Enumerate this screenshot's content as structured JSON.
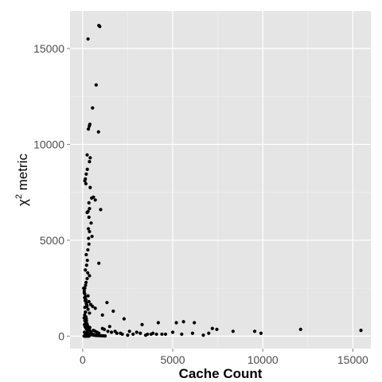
{
  "chart_data": {
    "type": "scatter",
    "title": "",
    "xlabel": "Cache Count",
    "ylabel_symbol": "χ",
    "ylabel_sup": "2",
    "ylabel_rest": " metric",
    "xlim": [
      -700,
      16000
    ],
    "ylim": [
      -650,
      16950
    ],
    "xticks": [
      0,
      5000,
      10000,
      15000
    ],
    "yticks": [
      0,
      5000,
      10000,
      15000
    ],
    "xtick_labels": [
      "0",
      "5000",
      "10000",
      "15000"
    ],
    "ytick_labels": [
      "0",
      "5000",
      "10000",
      "15000"
    ],
    "grid": true,
    "panel_color": "#e5e5e5",
    "grid_color": "#ffffff",
    "point_color": "#000000",
    "x": [
      900,
      950,
      300,
      750,
      550,
      400,
      370,
      880,
      320,
      420,
      380,
      250,
      260,
      200,
      150,
      120,
      180,
      420,
      500,
      700,
      600,
      350,
      380,
      300,
      250,
      1000,
      350,
      470,
      320,
      380,
      520,
      330,
      350,
      290,
      200,
      260,
      220,
      150,
      900,
      280,
      380,
      250,
      190,
      160,
      120,
      90,
      110,
      140,
      200,
      240,
      300,
      160,
      110,
      80,
      120,
      160,
      300,
      350,
      450,
      550,
      700,
      380,
      200,
      1100,
      1350,
      1700,
      2300,
      3300,
      4200,
      5200,
      5600,
      6200,
      7200,
      7450,
      8350,
      9550,
      9900,
      12100,
      15450,
      1500,
      1800,
      2100,
      2600,
      3000,
      3600,
      3900,
      4400,
      5000,
      5500,
      6100,
      6700,
      7000,
      400,
      600,
      700,
      800,
      900,
      1100,
      1200,
      1400,
      1600,
      1900,
      2200,
      2500,
      2800,
      3200,
      3500,
      3800,
      4100,
      4600,
      120,
      150,
      180,
      210,
      240,
      270,
      300,
      330,
      360,
      390,
      420,
      450,
      480,
      510,
      540,
      570,
      600,
      630,
      660,
      690,
      720,
      780,
      850,
      950,
      1050,
      1150,
      1250,
      100,
      130,
      170,
      200,
      230,
      260,
      290,
      320,
      350,
      380,
      410,
      440,
      470,
      500,
      530,
      560,
      590,
      620,
      80,
      110,
      140,
      170,
      200,
      230,
      260,
      290,
      320,
      350,
      60,
      90,
      120,
      150,
      180,
      210,
      240,
      100,
      150,
      200,
      250,
      300,
      350,
      400
    ],
    "y": [
      16200,
      16150,
      15500,
      13100,
      11900,
      11050,
      10950,
      10650,
      10800,
      9300,
      9100,
      9450,
      8700,
      8450,
      8200,
      8100,
      7950,
      7750,
      7200,
      7100,
      7250,
      6950,
      6650,
      6500,
      6450,
      6600,
      6200,
      5900,
      5600,
      5450,
      5200,
      5100,
      4800,
      4500,
      4250,
      3950,
      3700,
      3450,
      3800,
      3300,
      3150,
      3000,
      2800,
      2650,
      2500,
      2250,
      2000,
      1850,
      1700,
      1550,
      1400,
      1250,
      1100,
      950,
      800,
      650,
      2100,
      1800,
      1650,
      1550,
      1450,
      1200,
      900,
      1100,
      1750,
      1300,
      900,
      600,
      700,
      700,
      750,
      700,
      400,
      350,
      250,
      250,
      150,
      350,
      300,
      500,
      250,
      150,
      250,
      200,
      100,
      150,
      100,
      200,
      100,
      150,
      50,
      150,
      450,
      300,
      250,
      200,
      150,
      400,
      350,
      250,
      200,
      150,
      100,
      50,
      100,
      150,
      50,
      100,
      100,
      100,
      1500,
      1250,
      1000,
      800,
      650,
      550,
      450,
      400,
      350,
      300,
      250,
      200,
      150,
      120,
      100,
      90,
      80,
      70,
      60,
      50,
      40,
      35,
      30,
      25,
      20,
      15,
      10,
      600,
      500,
      450,
      400,
      350,
      300,
      250,
      200,
      180,
      160,
      140,
      120,
      100,
      90,
      80,
      70,
      60,
      50,
      5,
      5,
      5,
      5,
      5,
      5,
      5,
      5,
      5,
      5,
      2500,
      2350,
      2200,
      2050,
      1900,
      1750,
      1600,
      200,
      150,
      120,
      100,
      80,
      60,
      40
    ]
  }
}
